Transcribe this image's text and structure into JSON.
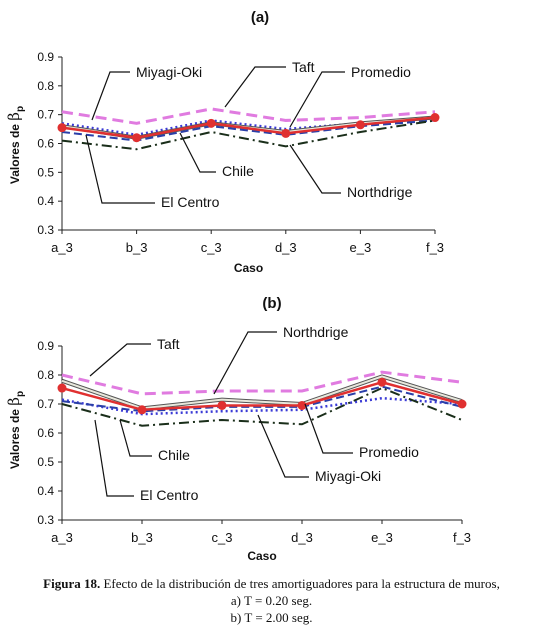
{
  "chart_data": [
    {
      "type": "line",
      "title": "(a)",
      "xlabel": "Caso",
      "ylabel": "Valores de βp",
      "ylabel_main": "Valores de ",
      "ylabel_symbol": "β",
      "ylabel_sub": "p",
      "categories": [
        "a_3",
        "b_3",
        "c_3",
        "d_3",
        "e_3",
        "f_3"
      ],
      "ylim": [
        0.3,
        0.9
      ],
      "yticks": [
        "0.3",
        "0.4",
        "0.5",
        "0.6",
        "0.7",
        "0.8",
        "0.9"
      ],
      "grid": false,
      "series": [
        {
          "name": "Taft",
          "color": "#e07be0",
          "style": "dash-long",
          "values": [
            0.71,
            0.67,
            0.72,
            0.68,
            0.69,
            0.71
          ]
        },
        {
          "name": "Northdrige",
          "color": "#3b3bd6",
          "style": "dotted",
          "values": [
            0.67,
            0.63,
            0.68,
            0.65,
            0.67,
            0.69
          ]
        },
        {
          "name": "Miyagi-Oki",
          "color": "#c4c4b4",
          "style": "double",
          "values": [
            0.66,
            0.62,
            0.67,
            0.64,
            0.67,
            0.69
          ]
        },
        {
          "name": "El Centro",
          "color": "#2a3fa8",
          "style": "dash",
          "values": [
            0.64,
            0.61,
            0.66,
            0.63,
            0.66,
            0.68
          ]
        },
        {
          "name": "Chile",
          "color": "#1a2e1a",
          "style": "dash-dot",
          "values": [
            0.61,
            0.58,
            0.64,
            0.59,
            0.64,
            0.68
          ]
        },
        {
          "name": "Promedio",
          "color": "#e03030",
          "style": "solid-marker",
          "values": [
            0.655,
            0.62,
            0.67,
            0.635,
            0.665,
            0.69
          ]
        }
      ],
      "labels": [
        "Miyagi-Oki",
        "Taft",
        "Promedio",
        "Chile",
        "Northdrige",
        "El Centro"
      ]
    },
    {
      "type": "line",
      "title": "(b)",
      "xlabel": "Caso",
      "ylabel": "Valores de βp",
      "ylabel_main": "Valores de ",
      "ylabel_symbol": "β",
      "ylabel_sub": "p",
      "categories": [
        "a_3",
        "b_3",
        "c_3",
        "d_3",
        "e_3",
        "f_3"
      ],
      "ylim": [
        0.3,
        0.9
      ],
      "yticks": [
        "0.3",
        "0.4",
        "0.5",
        "0.6",
        "0.7",
        "0.8",
        "0.9"
      ],
      "grid": false,
      "series": [
        {
          "name": "Taft",
          "color": "#e07be0",
          "style": "dash-long",
          "values": [
            0.8,
            0.735,
            0.745,
            0.745,
            0.81,
            0.775
          ]
        },
        {
          "name": "Miyagi-Oki",
          "color": "#c4c4b4",
          "style": "double",
          "values": [
            0.78,
            0.685,
            0.715,
            0.7,
            0.795,
            0.71
          ]
        },
        {
          "name": "Northdrige",
          "color": "#3b3bd6",
          "style": "dotted",
          "values": [
            0.715,
            0.665,
            0.675,
            0.68,
            0.72,
            0.7
          ]
        },
        {
          "name": "El Centro",
          "color": "#2a3fa8",
          "style": "dash",
          "values": [
            0.71,
            0.675,
            0.69,
            0.69,
            0.76,
            0.69
          ]
        },
        {
          "name": "Chile",
          "color": "#1a2e1a",
          "style": "dash-dot",
          "values": [
            0.7,
            0.625,
            0.645,
            0.63,
            0.755,
            0.645
          ]
        },
        {
          "name": "Promedio",
          "color": "#e03030",
          "style": "solid-marker",
          "values": [
            0.755,
            0.68,
            0.695,
            0.695,
            0.775,
            0.7
          ]
        }
      ],
      "labels": [
        "Taft",
        "Northdrige",
        "Chile",
        "Promedio",
        "Miyagi-Oki",
        "El Centro"
      ]
    }
  ],
  "caption": {
    "label": "Figura 18.",
    "text": " Efecto de la distribución de tres amortiguadores para la estructura de muros,",
    "line2": "a) T = 0.20 seg.",
    "line3": "b) T = 2.00 seg."
  }
}
